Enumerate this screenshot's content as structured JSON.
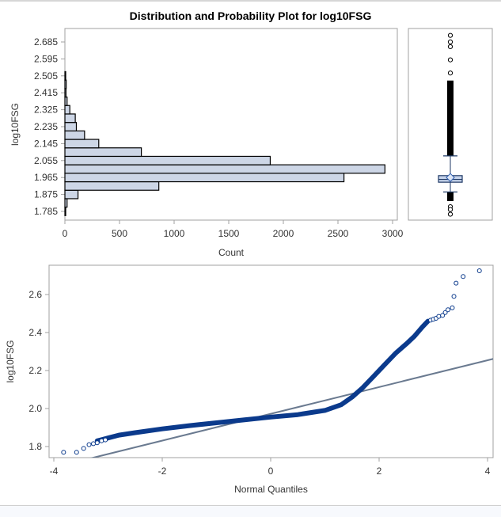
{
  "title": "Distribution and Probability Plot for log10FSG",
  "colors": {
    "bar_fill": "#cdd6e6",
    "bar_stroke": "#000000",
    "point": "#0b3a8c",
    "ref_line": "#6a7a90",
    "frame": "#a0a0a0",
    "box_fill": "#c6d3ea"
  },
  "chart_data": [
    {
      "type": "bar",
      "orientation": "horizontal",
      "title": "",
      "xlabel": "Count",
      "ylabel": "log10FSG",
      "xlim": [
        0,
        3000
      ],
      "ylim": [
        1.7625,
        2.7075
      ],
      "x_ticks": [
        "0",
        "500",
        "1000",
        "1500",
        "2000",
        "2500",
        "3000"
      ],
      "y_ticks": [
        "1.785",
        "1.875",
        "1.965",
        "2.055",
        "2.145",
        "2.235",
        "2.325",
        "2.415",
        "2.505",
        "2.595",
        "2.685"
      ],
      "bin_width": 0.045,
      "categories": [
        1.785,
        1.83,
        1.875,
        1.92,
        1.965,
        2.01,
        2.055,
        2.1,
        2.145,
        2.19,
        2.235,
        2.28,
        2.325,
        2.37,
        2.415,
        2.46,
        2.505
      ],
      "values": [
        5,
        20,
        120,
        860,
        2555,
        2930,
        1880,
        700,
        310,
        180,
        105,
        95,
        45,
        20,
        10,
        12,
        6
      ]
    },
    {
      "type": "box",
      "variable": "log10FSG",
      "q1": 1.94,
      "median": 1.955,
      "mean": 1.965,
      "q3": 1.975,
      "whisker_low": 1.888,
      "whisker_high": 2.08,
      "outliers_high_dense_to": 2.48,
      "outliers_high": [
        2.52,
        2.59,
        2.66,
        2.685,
        2.72
      ],
      "outliers_low_dense_from": 1.84,
      "outliers_low": [
        1.81,
        1.795,
        1.77
      ]
    },
    {
      "type": "scatter",
      "title": "",
      "xlabel": "Normal Quantiles",
      "ylabel": "log10FSG",
      "xlim": [
        -4.05,
        4.15
      ],
      "ylim": [
        1.74,
        2.76
      ],
      "x_ticks": [
        "-4",
        "-2",
        "0",
        "2",
        "4"
      ],
      "y_ticks": [
        "1.8",
        "2.0",
        "2.2",
        "2.4",
        "2.6"
      ],
      "reference_line": {
        "intercept": 1.972,
        "slope": 0.0705
      },
      "curve": [
        [
          -3.2,
          1.83
        ],
        [
          -3.0,
          1.845
        ],
        [
          -2.8,
          1.86
        ],
        [
          -2.5,
          1.873
        ],
        [
          -2.0,
          1.893
        ],
        [
          -1.5,
          1.91
        ],
        [
          -1.0,
          1.925
        ],
        [
          -0.5,
          1.94
        ],
        [
          0.0,
          1.955
        ],
        [
          0.5,
          1.968
        ],
        [
          1.0,
          1.99
        ],
        [
          1.3,
          2.02
        ],
        [
          1.5,
          2.06
        ],
        [
          1.7,
          2.11
        ],
        [
          1.9,
          2.17
        ],
        [
          2.1,
          2.23
        ],
        [
          2.3,
          2.29
        ],
        [
          2.5,
          2.34
        ],
        [
          2.65,
          2.38
        ],
        [
          2.8,
          2.43
        ],
        [
          2.9,
          2.46
        ]
      ],
      "points": [
        [
          -3.82,
          1.77
        ],
        [
          -3.58,
          1.77
        ],
        [
          -3.45,
          1.79
        ],
        [
          -3.35,
          1.81
        ],
        [
          -3.27,
          1.815
        ],
        [
          -3.2,
          1.82
        ],
        [
          -3.12,
          1.83
        ],
        [
          -3.05,
          1.835
        ],
        [
          2.95,
          2.465
        ],
        [
          3.0,
          2.47
        ],
        [
          3.05,
          2.475
        ],
        [
          3.1,
          2.485
        ],
        [
          3.17,
          2.49
        ],
        [
          3.22,
          2.505
        ],
        [
          3.27,
          2.52
        ],
        [
          3.35,
          2.53
        ],
        [
          3.38,
          2.59
        ],
        [
          3.42,
          2.66
        ],
        [
          3.55,
          2.695
        ],
        [
          3.85,
          2.725
        ]
      ]
    }
  ]
}
